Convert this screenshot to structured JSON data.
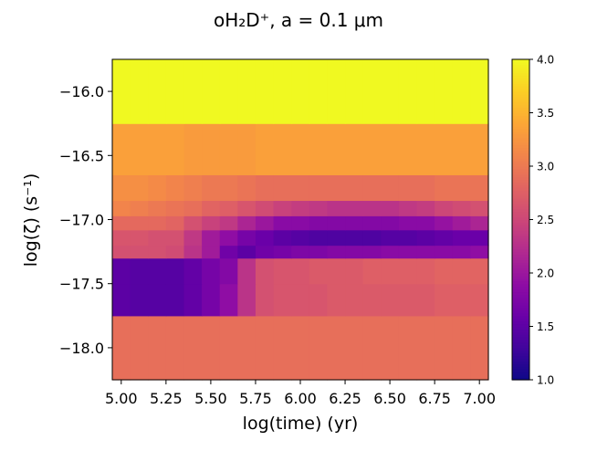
{
  "chart_data": {
    "type": "heatmap",
    "title": "oH₂D⁺, a = 0.1 μm",
    "xlabel": "log(time) (yr)",
    "ylabel": "log(ζ)  (s⁻¹)",
    "xlim": [
      4.95,
      7.05
    ],
    "ylim": [
      -18.25,
      -15.75
    ],
    "xticks": [
      5.0,
      5.25,
      5.5,
      5.75,
      6.0,
      6.25,
      6.5,
      6.75,
      7.0
    ],
    "xtick_labels": [
      "5.00",
      "5.25",
      "5.50",
      "5.75",
      "6.00",
      "6.25",
      "6.50",
      "6.75",
      "7.00"
    ],
    "yticks": [
      -16.0,
      -16.5,
      -17.0,
      -17.5,
      -18.0
    ],
    "ytick_labels": [
      "−16.0",
      "−16.5",
      "−17.0",
      "−17.5",
      "−18.0"
    ],
    "colormap": "plasma",
    "colorbar": {
      "vmin": 1.0,
      "vmax": 4.0,
      "ticks": [
        1.0,
        1.5,
        2.0,
        2.5,
        3.0,
        3.5,
        4.0
      ],
      "tick_labels": [
        "1.0",
        "1.5",
        "2.0",
        "2.5",
        "3.0",
        "3.5",
        "4.0"
      ]
    },
    "x": [
      5.0,
      5.1,
      5.2,
      5.3,
      5.4,
      5.5,
      5.6,
      5.7,
      5.8,
      5.9,
      6.0,
      6.1,
      6.2,
      6.3,
      6.4,
      6.5,
      6.6,
      6.7,
      6.8,
      6.9,
      7.0
    ],
    "rows": [
      {
        "y0": -18.25,
        "y1": -17.75,
        "values": [
          2.9,
          2.9,
          2.9,
          2.9,
          2.9,
          2.9,
          2.9,
          2.9,
          2.9,
          2.9,
          2.9,
          2.9,
          2.9,
          2.9,
          2.9,
          2.9,
          2.9,
          2.9,
          2.9,
          2.9,
          2.9
        ]
      },
      {
        "y0": -17.75,
        "y1": -17.5,
        "values": [
          1.5,
          1.45,
          1.45,
          1.45,
          1.55,
          1.7,
          1.9,
          2.3,
          2.6,
          2.65,
          2.65,
          2.65,
          2.7,
          2.7,
          2.7,
          2.7,
          2.7,
          2.7,
          2.75,
          2.75,
          2.75
        ]
      },
      {
        "y0": -17.5,
        "y1": -17.3,
        "values": [
          1.5,
          1.45,
          1.45,
          1.45,
          1.55,
          1.7,
          1.8,
          2.3,
          2.6,
          2.65,
          2.65,
          2.7,
          2.7,
          2.7,
          2.75,
          2.75,
          2.75,
          2.75,
          2.8,
          2.8,
          2.8
        ]
      },
      {
        "y0": -17.3,
        "y1": -17.2,
        "values": [
          2.6,
          2.6,
          2.6,
          2.55,
          2.3,
          2.05,
          1.65,
          1.5,
          1.65,
          1.7,
          1.75,
          1.75,
          1.8,
          1.8,
          1.8,
          1.85,
          1.85,
          1.85,
          1.85,
          1.85,
          1.9
        ]
      },
      {
        "y0": -17.2,
        "y1": -17.08,
        "values": [
          2.65,
          2.65,
          2.6,
          2.6,
          2.35,
          2.05,
          1.9,
          1.7,
          1.6,
          1.5,
          1.45,
          1.4,
          1.4,
          1.4,
          1.4,
          1.45,
          1.45,
          1.5,
          1.55,
          1.6,
          1.6
        ]
      },
      {
        "y0": -17.08,
        "y1": -16.97,
        "values": [
          2.85,
          2.85,
          2.85,
          2.8,
          2.6,
          2.45,
          2.35,
          2.15,
          2.0,
          1.85,
          1.85,
          1.8,
          1.8,
          1.8,
          1.8,
          1.8,
          1.85,
          1.85,
          1.95,
          2.05,
          2.15
        ]
      },
      {
        "y0": -16.97,
        "y1": -16.85,
        "values": [
          3.1,
          3.05,
          3.0,
          2.95,
          2.9,
          2.8,
          2.75,
          2.65,
          2.55,
          2.45,
          2.4,
          2.35,
          2.3,
          2.3,
          2.3,
          2.3,
          2.35,
          2.4,
          2.5,
          2.55,
          2.6
        ]
      },
      {
        "y0": -16.85,
        "y1": -16.65,
        "values": [
          3.2,
          3.2,
          3.15,
          3.1,
          3.05,
          3.0,
          3.0,
          2.95,
          2.9,
          2.9,
          2.9,
          2.9,
          2.9,
          2.9,
          2.9,
          2.9,
          2.9,
          2.9,
          2.95,
          2.95,
          2.95
        ]
      },
      {
        "y0": -16.65,
        "y1": -16.25,
        "values": [
          3.35,
          3.35,
          3.35,
          3.35,
          3.3,
          3.3,
          3.3,
          3.3,
          3.35,
          3.35,
          3.35,
          3.35,
          3.35,
          3.35,
          3.35,
          3.35,
          3.35,
          3.35,
          3.35,
          3.35,
          3.35
        ]
      },
      {
        "y0": -16.25,
        "y1": -15.75,
        "values": [
          4.0,
          4.0,
          4.0,
          4.0,
          4.0,
          4.0,
          4.0,
          4.0,
          4.0,
          4.0,
          4.0,
          4.0,
          4.0,
          4.0,
          4.0,
          4.0,
          4.0,
          4.0,
          4.0,
          4.0,
          4.0
        ]
      }
    ]
  }
}
